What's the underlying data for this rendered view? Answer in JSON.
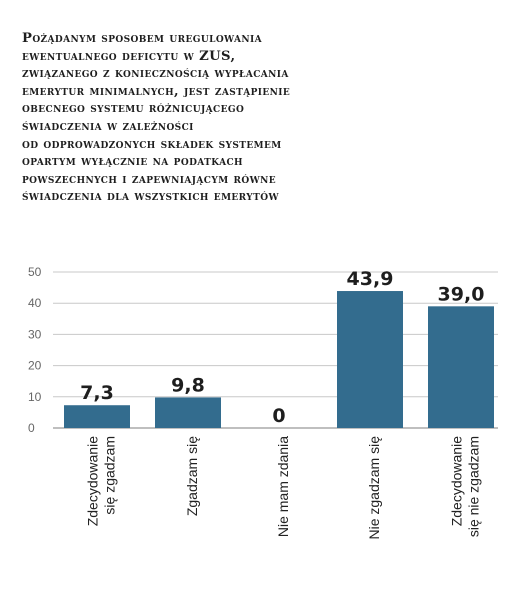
{
  "title": "Pożądanym sposobem uregulowania\newentualnego deficytu w ZUS,\nzwiązanego z koniecznością wypłacania\nemerytur minimalnych, jest zastąpienie\nobecnego systemu różnicującego\nświadczenia w zależności\nod odprowadzonych składek systemem\nopartym wyłącznie na podatkach\npowszechnych i zapewniającym równe\nświadczenia dla wszystkich emerytów",
  "chart_data": {
    "type": "bar",
    "title": "Pożądanym sposobem uregulowania ewentualnego deficytu w ZUS, związanego z koniecznością wypłacania emerytur minimalnych, jest zastąpienie obecnego systemu różnicującego świadczenia w zależności od odprowadzonych składek systemem opartym wyłącznie na podatkach powszechnych i zapewniającym równe świadczenia dla wszystkich emerytów",
    "categories": [
      [
        "Zdecydowanie",
        "się zgadzam"
      ],
      [
        "Zgadzam się"
      ],
      [
        "Nie mam zdania"
      ],
      [
        "Nie zgadzam się"
      ],
      [
        "Zdecydowanie",
        "się nie zgadzam"
      ]
    ],
    "values": [
      7.3,
      9.8,
      0,
      43.9,
      39.0
    ],
    "data_labels": [
      "7,3",
      "9,8",
      "0",
      "43,9",
      "39,0"
    ],
    "yticks": [
      0,
      10,
      20,
      30,
      40,
      50
    ],
    "ylim": [
      0,
      50
    ],
    "grid": true,
    "bar_color": "#336c8e",
    "grid_color": "#c8c8c8"
  }
}
